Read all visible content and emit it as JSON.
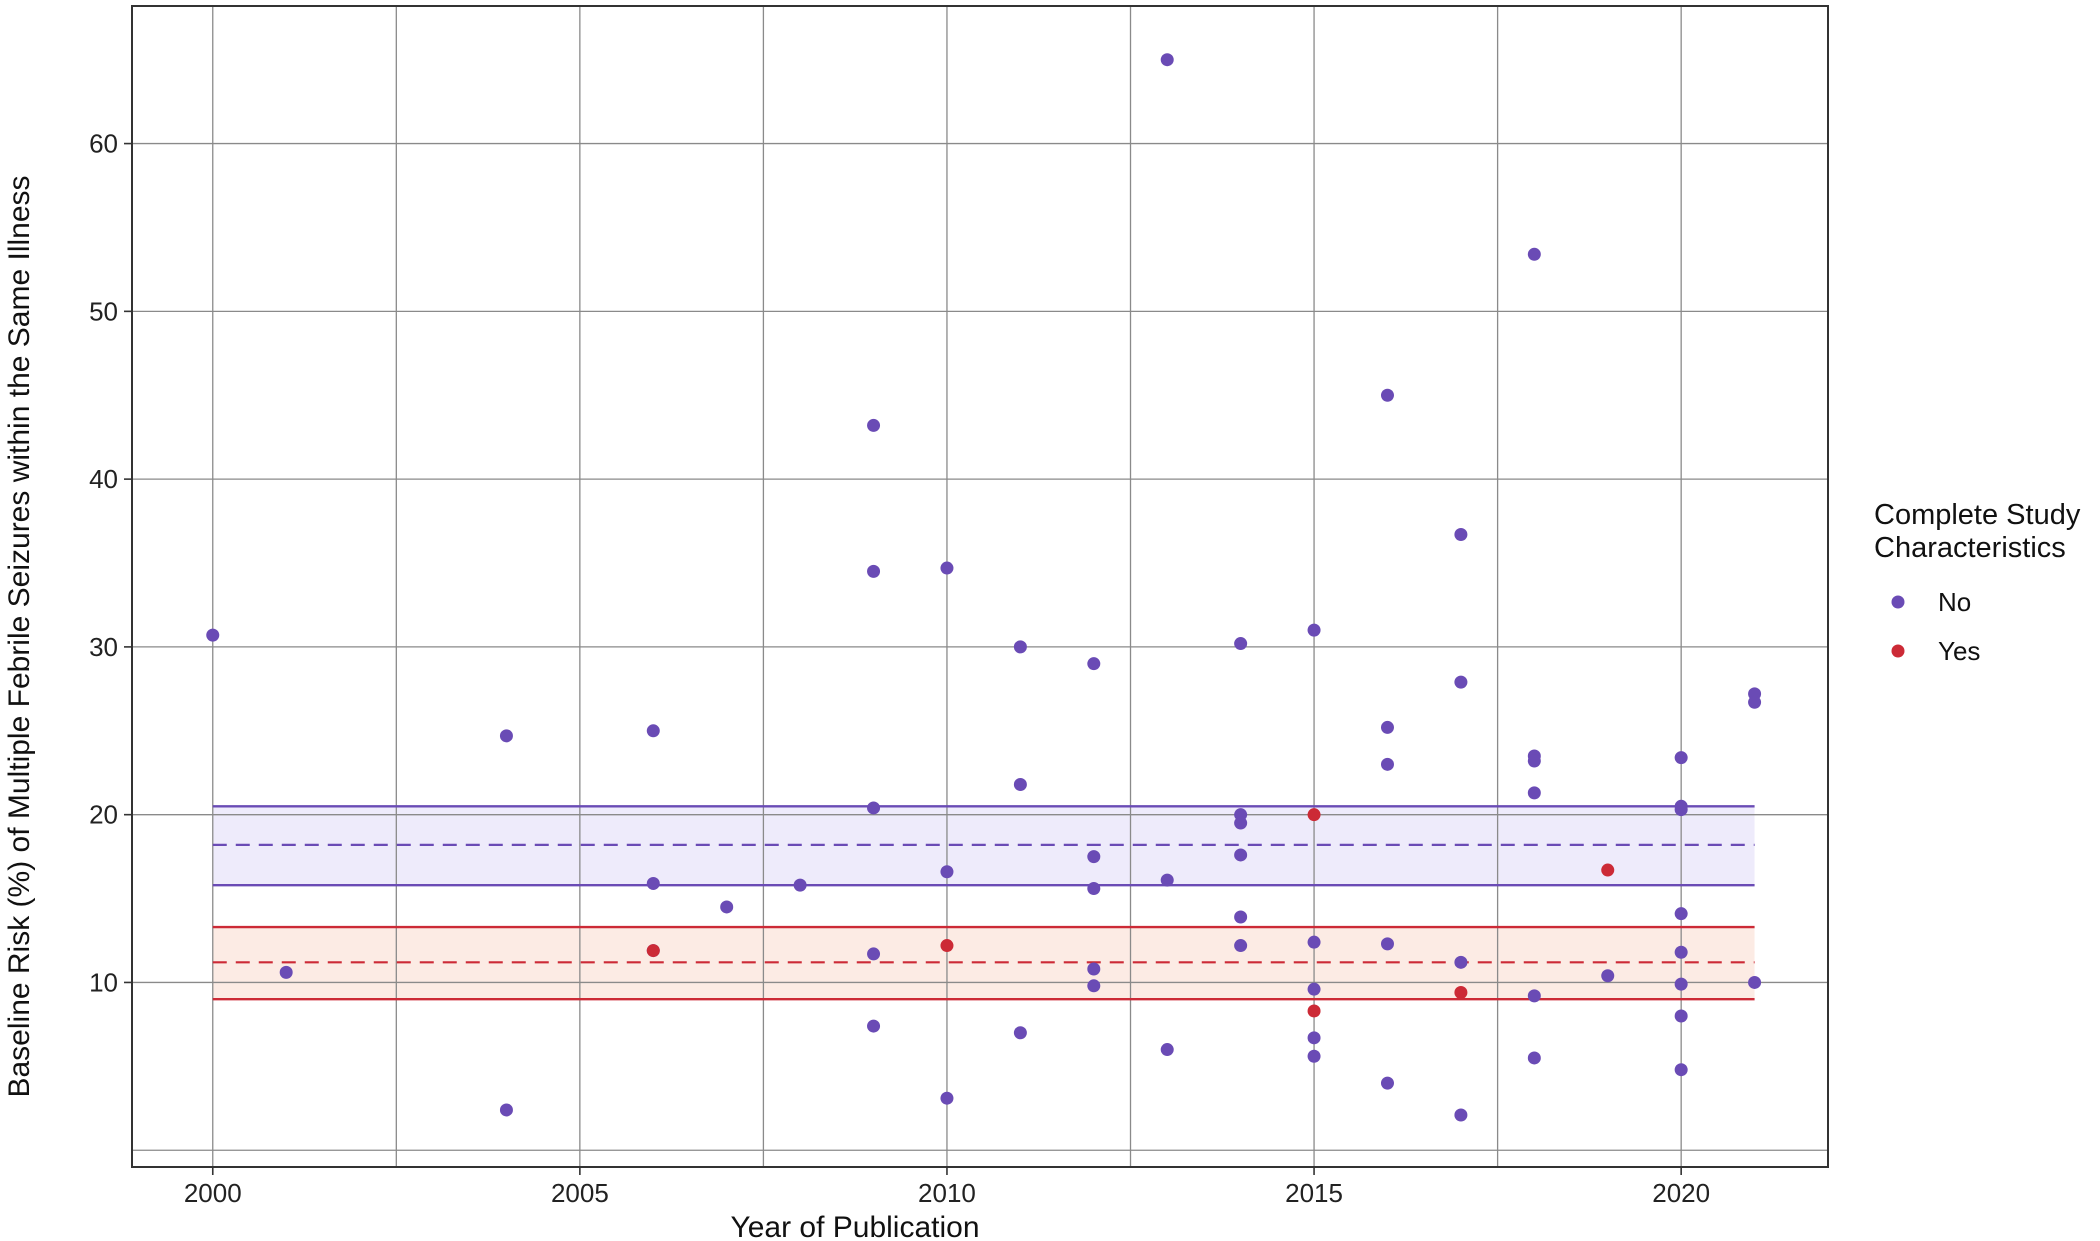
{
  "chart_data": {
    "type": "scatter",
    "title": "",
    "xlabel": "Year of Publication",
    "ylabel": "Baseline Risk (%) of Multiple Febrile Seizures within the Same Illness",
    "xlim": [
      1998.9,
      2022.0
    ],
    "ylim": [
      -1.0,
      68.2
    ],
    "x_ticks": [
      2000,
      2005,
      2010,
      2015,
      2020
    ],
    "y_ticks": [
      10,
      20,
      30,
      40,
      50,
      60
    ],
    "grid": true,
    "legend": {
      "title_lines": [
        "Complete Study",
        "Characteristics"
      ],
      "placement": "right",
      "entries": [
        "No",
        "Yes"
      ]
    },
    "colors": {
      "No": "#6a4bb5",
      "Yes": "#cc2a36"
    },
    "bands": [
      {
        "series": "No",
        "x_range": [
          2000,
          2021
        ],
        "lower": 15.8,
        "mean": 18.2,
        "upper": 20.5,
        "fill": "#eeebfb"
      },
      {
        "series": "Yes",
        "x_range": [
          2000,
          2021
        ],
        "lower": 9.0,
        "mean": 11.2,
        "upper": 13.3,
        "fill": "#fcebe4"
      }
    ],
    "series": [
      {
        "name": "No",
        "points": [
          [
            2000,
            30.7
          ],
          [
            2001,
            10.6
          ],
          [
            2004,
            24.7
          ],
          [
            2004,
            2.4
          ],
          [
            2006,
            25.0
          ],
          [
            2006,
            15.9
          ],
          [
            2006,
            11.9
          ],
          [
            2007,
            14.5
          ],
          [
            2008,
            15.8
          ],
          [
            2009,
            43.2
          ],
          [
            2009,
            34.5
          ],
          [
            2009,
            20.4
          ],
          [
            2009,
            11.7
          ],
          [
            2009,
            7.4
          ],
          [
            2010,
            34.7
          ],
          [
            2010,
            16.6
          ],
          [
            2010,
            3.1
          ],
          [
            2011,
            30.0
          ],
          [
            2011,
            21.8
          ],
          [
            2011,
            7.0
          ],
          [
            2012,
            29.0
          ],
          [
            2012,
            17.5
          ],
          [
            2012,
            15.6
          ],
          [
            2012,
            10.8
          ],
          [
            2012,
            9.8
          ],
          [
            2013,
            65.0
          ],
          [
            2013,
            16.1
          ],
          [
            2013,
            6.0
          ],
          [
            2014,
            30.2
          ],
          [
            2014,
            20.0
          ],
          [
            2014,
            19.5
          ],
          [
            2014,
            17.6
          ],
          [
            2014,
            13.9
          ],
          [
            2014,
            12.2
          ],
          [
            2015,
            31.0
          ],
          [
            2015,
            12.4
          ],
          [
            2015,
            9.6
          ],
          [
            2015,
            6.7
          ],
          [
            2015,
            5.6
          ],
          [
            2016,
            45.0
          ],
          [
            2016,
            25.2
          ],
          [
            2016,
            23.0
          ],
          [
            2016,
            12.3
          ],
          [
            2016,
            4.0
          ],
          [
            2017,
            36.7
          ],
          [
            2017,
            27.9
          ],
          [
            2017,
            11.2
          ],
          [
            2017,
            2.1
          ],
          [
            2018,
            53.4
          ],
          [
            2018,
            23.5
          ],
          [
            2018,
            23.2
          ],
          [
            2018,
            21.3
          ],
          [
            2018,
            9.2
          ],
          [
            2018,
            5.5
          ],
          [
            2019,
            10.4
          ],
          [
            2020,
            23.4
          ],
          [
            2020,
            20.5
          ],
          [
            2020,
            20.3
          ],
          [
            2020,
            14.1
          ],
          [
            2020,
            11.8
          ],
          [
            2020,
            9.9
          ],
          [
            2020,
            8.0
          ],
          [
            2020,
            4.8
          ],
          [
            2021,
            27.2
          ],
          [
            2021,
            26.7
          ],
          [
            2021,
            10.0
          ]
        ]
      },
      {
        "name": "Yes",
        "points": [
          [
            2006,
            11.9
          ],
          [
            2010,
            12.2
          ],
          [
            2015,
            20.0
          ],
          [
            2015,
            8.3
          ],
          [
            2017,
            9.4
          ],
          [
            2019,
            16.7
          ]
        ]
      }
    ]
  }
}
